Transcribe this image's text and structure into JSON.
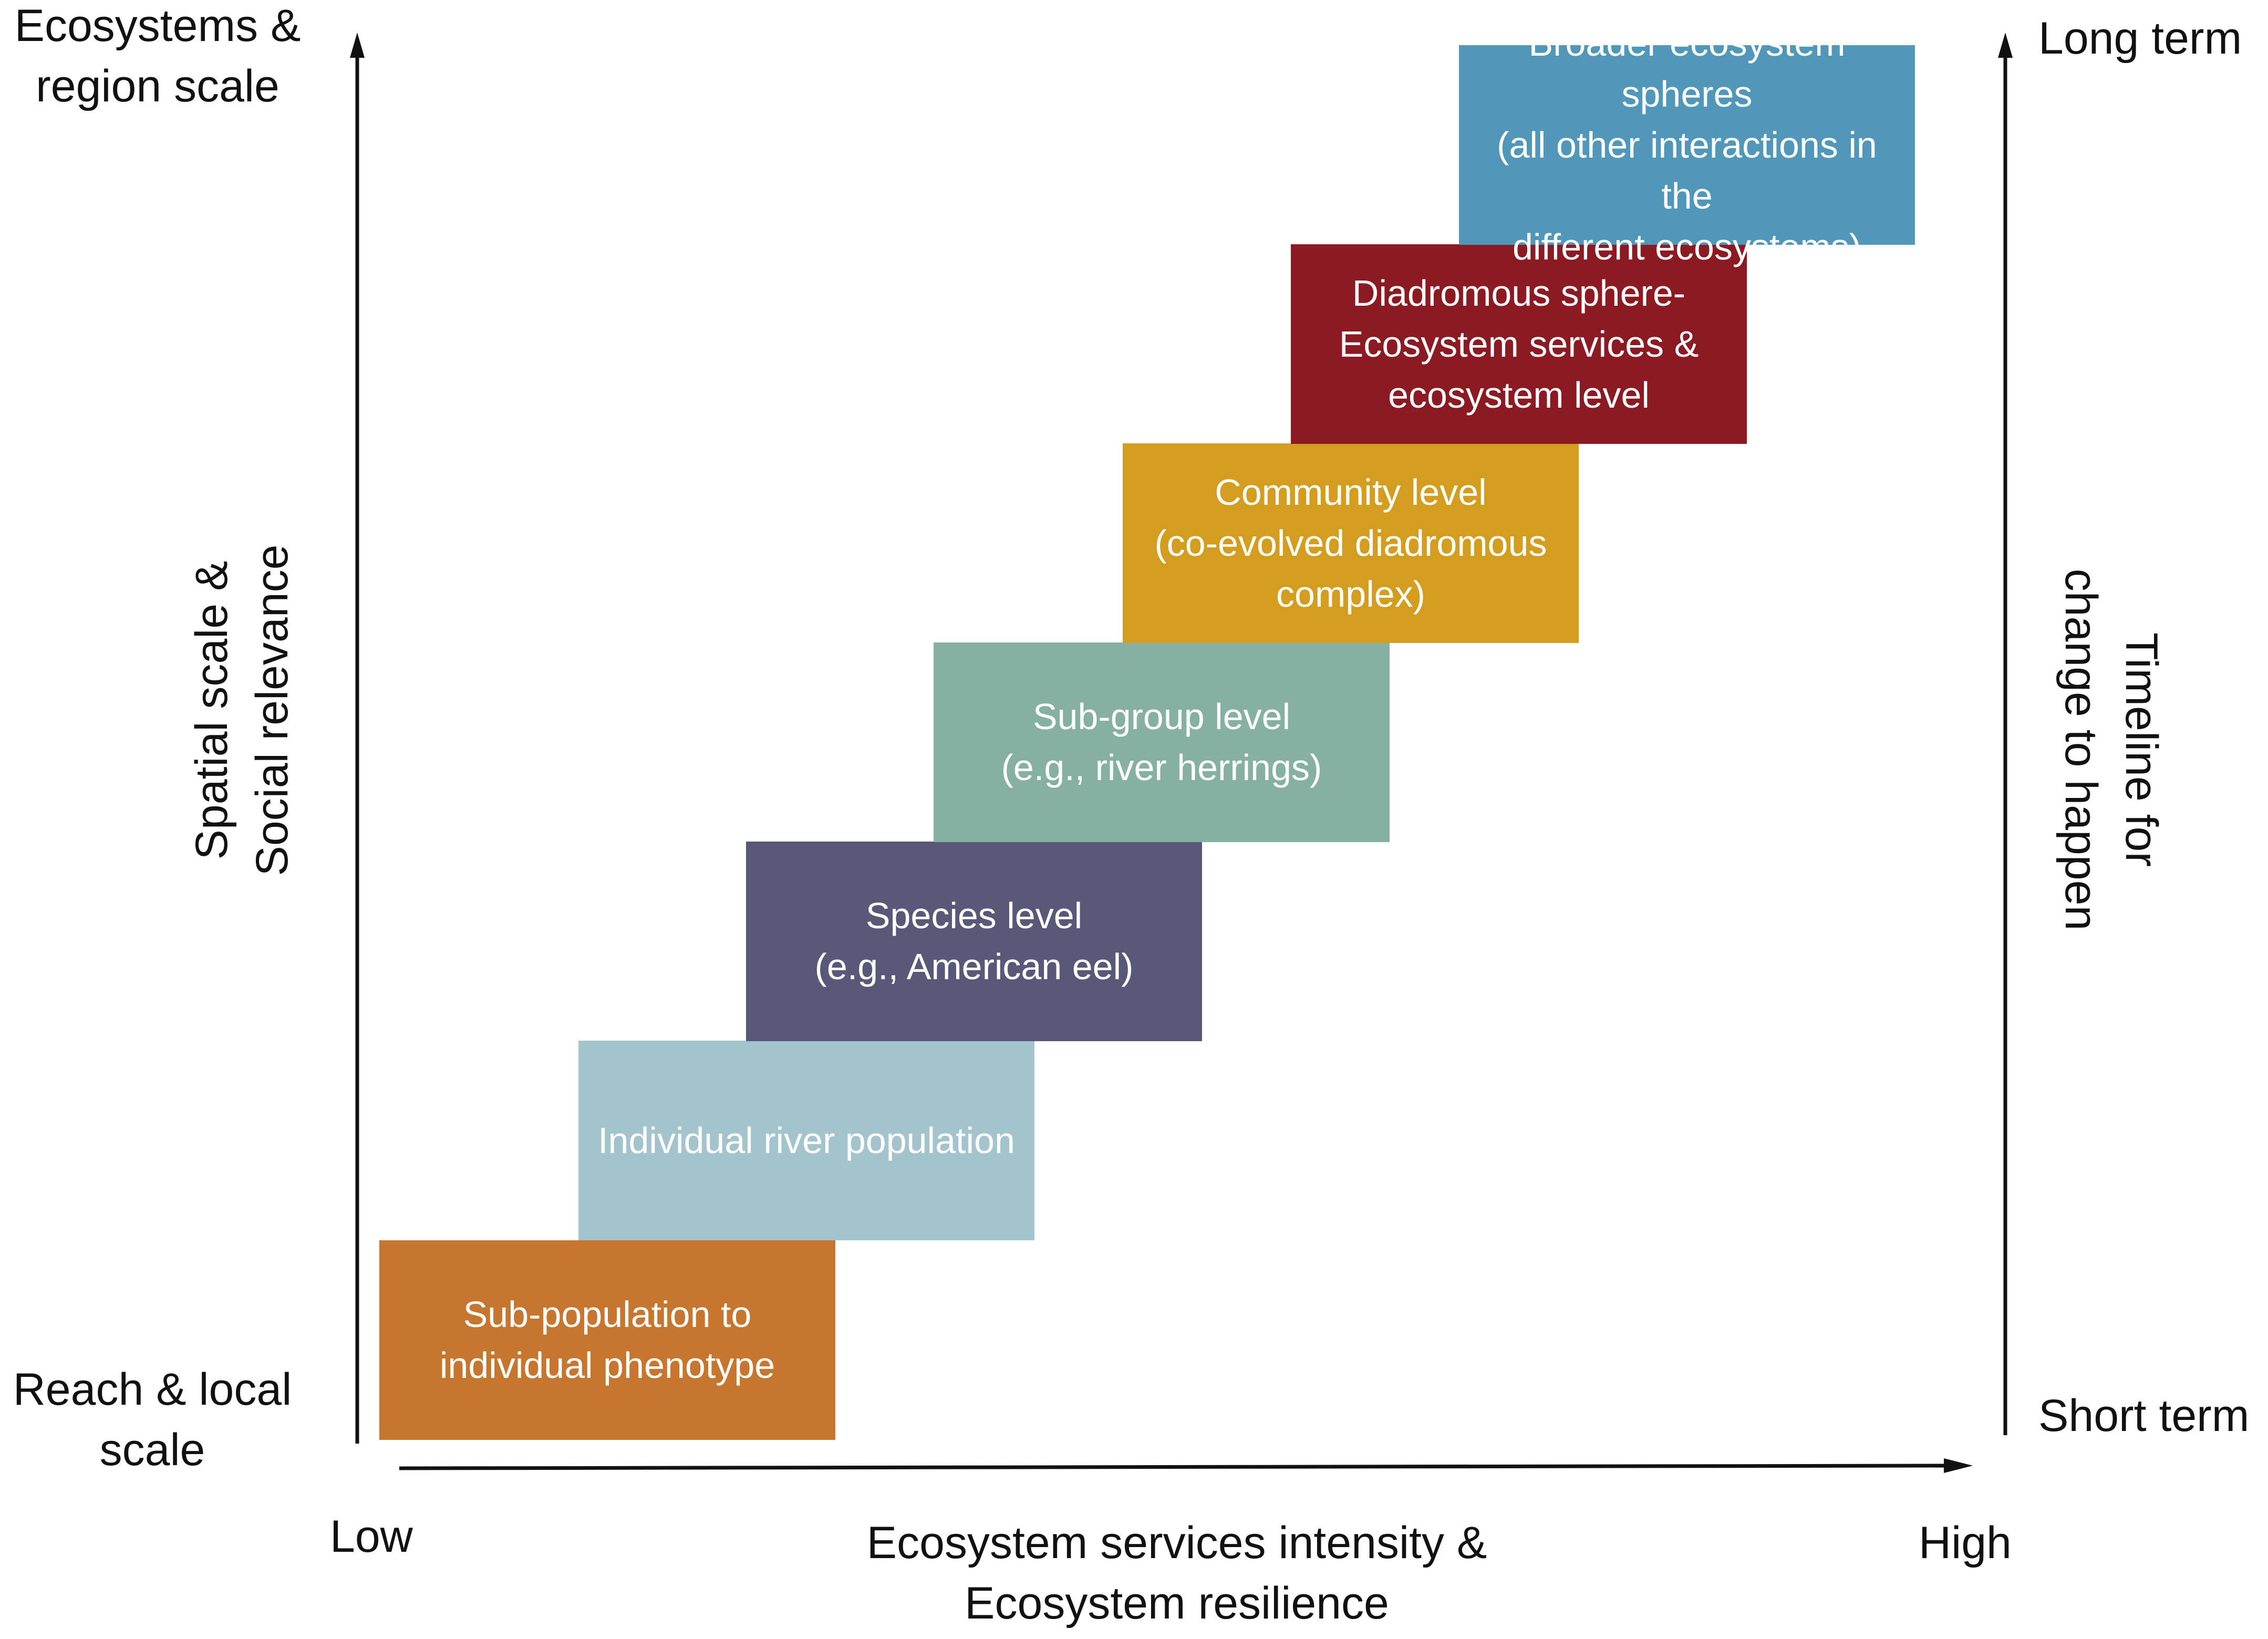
{
  "figure": {
    "left_axis": {
      "top_label": "Ecosystems &\nregion scale",
      "bottom_label": "Reach & local\nscale",
      "title": "Spatial scale &\nSocial relevance"
    },
    "right_axis": {
      "top_label": "Long term",
      "bottom_label": "Short term",
      "title": "Timeline for\nchange to happen"
    },
    "bottom_axis": {
      "low_label": "Low",
      "high_label": "High",
      "title": "Ecosystem services intensity &\nEcosystem resilience"
    },
    "levels": [
      {
        "text": "Sub-population to\nindividual phenotype",
        "color": "#c7762f"
      },
      {
        "text": "Individual river population",
        "color": "#a3c4cd"
      },
      {
        "text": "Species level\n(e.g., American eel)",
        "color": "#585878"
      },
      {
        "text": "Sub-group level\n(e.g., river herrings)",
        "color": "#86b0a2"
      },
      {
        "text": "Community level\n(co-evolved diadromous\ncomplex)",
        "color": "#d39d20"
      },
      {
        "text": "Diadromous sphere-\nEcosystem services &\necosystem level",
        "color": "#8b1a22"
      },
      {
        "text": "Broader ecosystem spheres\n(all other interactions in the\ndifferent ecosystems)",
        "color": "#5097ba"
      }
    ]
  }
}
